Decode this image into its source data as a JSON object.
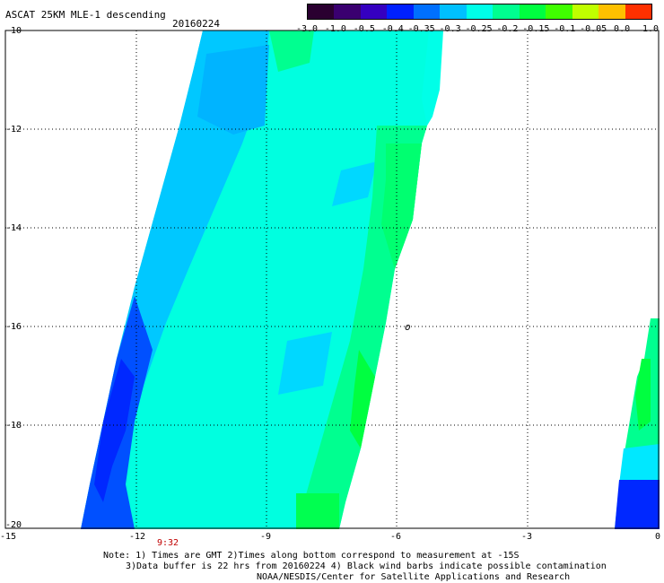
{
  "header": {
    "title": "ASCAT 25KM MLE-1 descending",
    "date": "20160224"
  },
  "colorbar": {
    "labels": [
      "-3.0",
      "-1.0",
      "-0.5",
      "-0.4",
      "-0.35",
      "-0.3",
      "-0.25",
      "-0.2",
      "-0.15",
      "-0.1",
      "-0.05",
      "0.0",
      "1.0"
    ],
    "colors": [
      "#2a0030",
      "#3a0070",
      "#3500c0",
      "#0020ff",
      "#0070ff",
      "#00c0ff",
      "#00ffe8",
      "#00ff90",
      "#00ff40",
      "#40ff00",
      "#c0ff00",
      "#ffc000",
      "#ff3000"
    ]
  },
  "map": {
    "lon_ticks": [
      "-15",
      "-12",
      "-9",
      "-6",
      "-3",
      "0"
    ],
    "lat_ticks": [
      "-10",
      "-12",
      "-14",
      "-16",
      "-18",
      "-20"
    ],
    "marker": "o"
  },
  "timestamp": "9:32",
  "notes": {
    "line1": "Note: 1) Times are GMT 2)Times along bottom correspond to measurement at -15S",
    "line2": "3)Data buffer is 22 hrs from 20160224 4) Black wind barbs indicate possible contamination",
    "line3": "NOAA/NESDIS/Center for Satellite Applications and Research"
  }
}
